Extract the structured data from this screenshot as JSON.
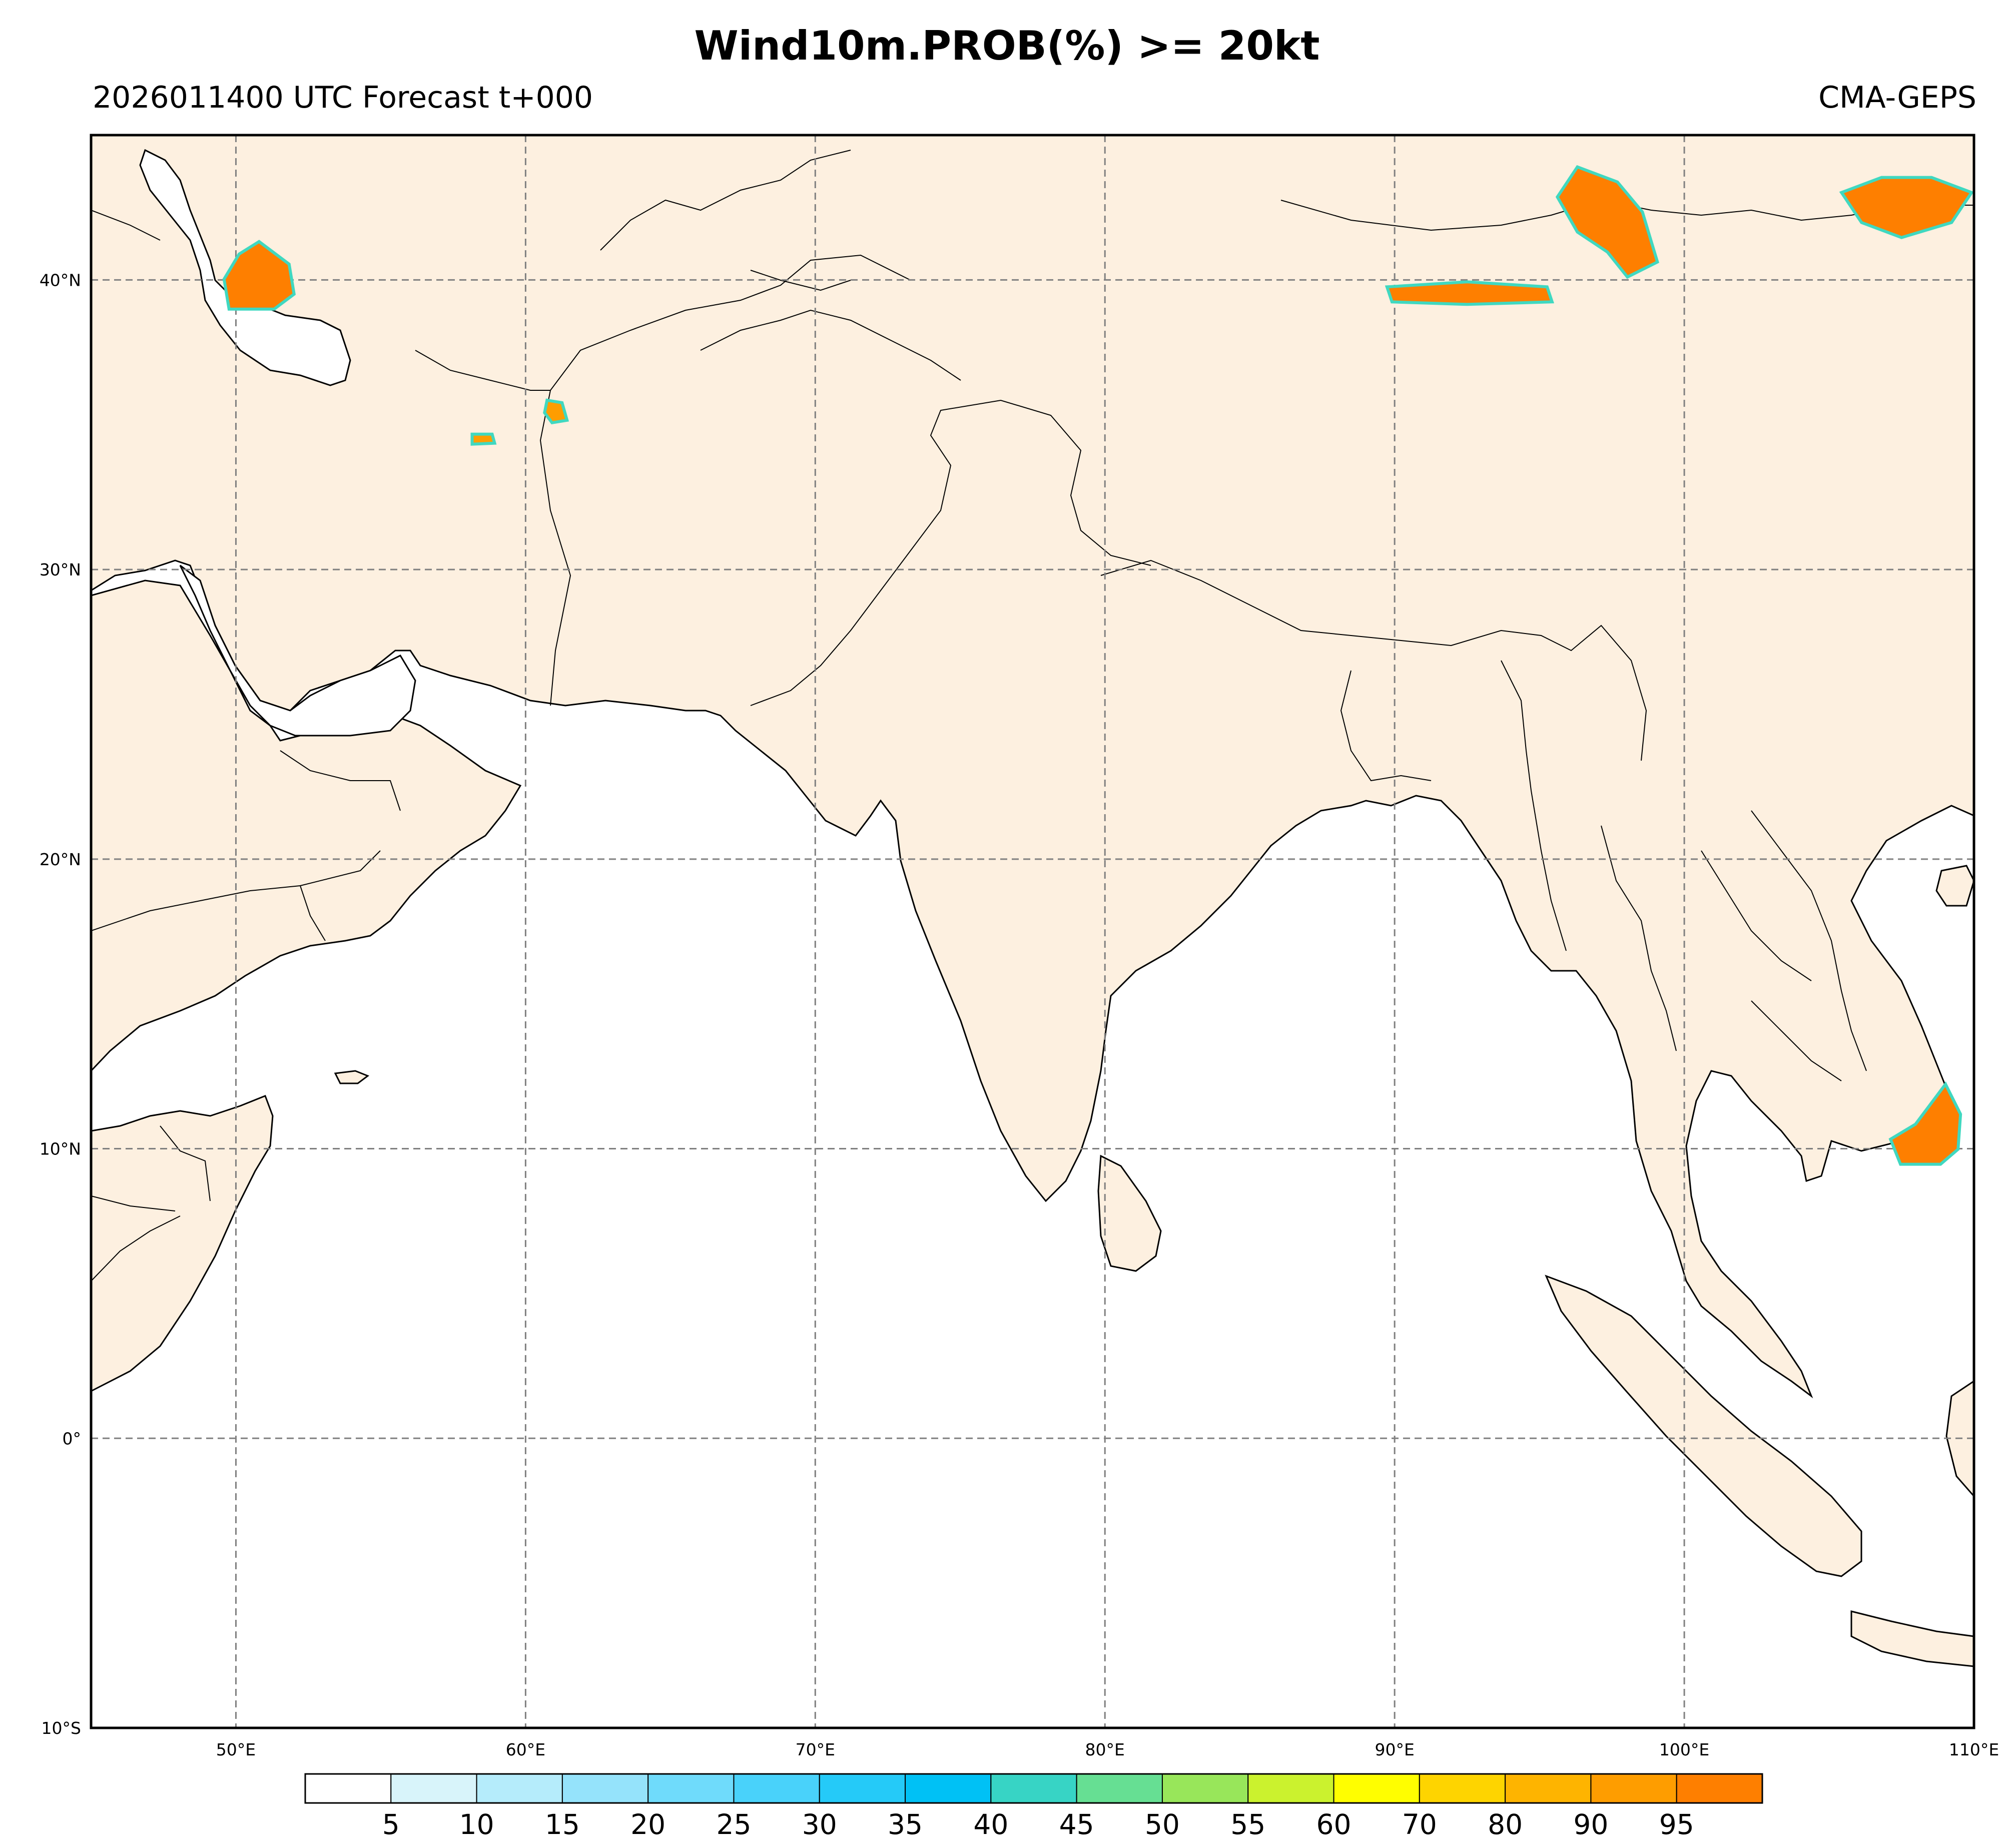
{
  "title": "Wind10m.PROB(%) >= 20kt",
  "subtitle_left": "2026011400 UTC Forecast t+000",
  "subtitle_right": "CMA-GEPS",
  "map": {
    "extent_lon": [
      45,
      110
    ],
    "extent_lat": [
      -10,
      45
    ],
    "land_color": "#fdf0e0",
    "ocean_color": "#ffffff",
    "gridline_color": "#808080",
    "lon_ticks": [
      {
        "value": 50,
        "label": "50°E"
      },
      {
        "value": 60,
        "label": "60°E"
      },
      {
        "value": 70,
        "label": "70°E"
      },
      {
        "value": 80,
        "label": "80°E"
      },
      {
        "value": 90,
        "label": "90°E"
      },
      {
        "value": 100,
        "label": "100°E"
      },
      {
        "value": 110,
        "label": "110°E"
      }
    ],
    "lat_ticks": [
      {
        "value": -10,
        "label": "10°S"
      },
      {
        "value": 0,
        "label": "0°"
      },
      {
        "value": 10,
        "label": "10°N"
      },
      {
        "value": 20,
        "label": "20°N"
      },
      {
        "value": 30,
        "label": "30°N"
      },
      {
        "value": 40,
        "label": "40°N"
      }
    ],
    "probability_areas": [
      {
        "region": "Caspian Sea west shore",
        "lon": 50.8,
        "lat": 40.2,
        "probability": 95
      },
      {
        "region": "Gulf of Thailand east / Vietnam coast",
        "lon": 108.5,
        "lat": 10.5,
        "probability": 95
      },
      {
        "region": "Gobi / Mongolia",
        "lon": 97,
        "lat": 42,
        "probability": 95
      },
      {
        "region": "Mongolia east",
        "lon": 107.5,
        "lat": 42.5,
        "probability": 95
      },
      {
        "region": "Tarim basin",
        "lon": 92.5,
        "lat": 39.5,
        "probability": 95
      },
      {
        "region": "Iran plateau",
        "lon": 58.5,
        "lat": 34.5,
        "probability": 90
      },
      {
        "region": "Afghanistan west",
        "lon": 61,
        "lat": 35.5,
        "probability": 90
      }
    ]
  },
  "colorbar": {
    "labels": [
      "5",
      "10",
      "15",
      "20",
      "25",
      "30",
      "35",
      "40",
      "45",
      "50",
      "55",
      "60",
      "70",
      "80",
      "90",
      "95"
    ],
    "colors": [
      "#ffffff",
      "#d8f4fa",
      "#b5ecfb",
      "#95e3fb",
      "#6fdbfb",
      "#49d2fa",
      "#25caf8",
      "#00c1f5",
      "#37d4c5",
      "#66df93",
      "#98e65a",
      "#cbf22e",
      "#fffe00",
      "#fed400",
      "#feb400",
      "#fe9d00",
      "#fe7f00"
    ]
  }
}
